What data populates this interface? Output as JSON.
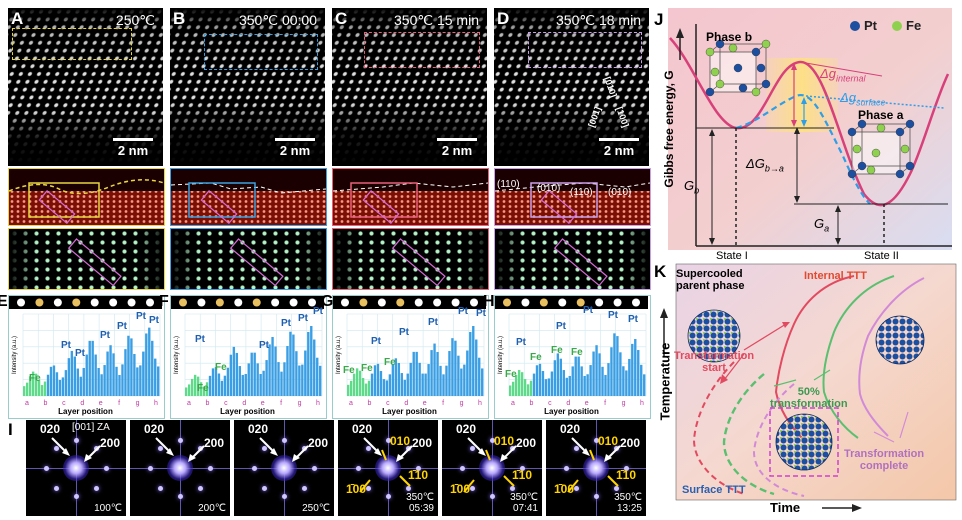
{
  "figure": {
    "panels": {
      "A": {
        "letter": "A",
        "time": "250℃",
        "box_color": "#e8d640",
        "frame_color": "#e8d640"
      },
      "B": {
        "letter": "B",
        "time": "350℃ 00:00",
        "box_color": "#3aa0e0",
        "frame_color": "#3aa0e0"
      },
      "C": {
        "letter": "C",
        "time": "350℃ 15 min",
        "box_color": "#e8607a",
        "frame_color": "#e8607a"
      },
      "D": {
        "letter": "D",
        "time": "350℃ 18 min",
        "box_color": "#c9a0e8",
        "frame_color": "#c9a0e8"
      }
    },
    "scale_bar": "2 nm",
    "d_directions": [
      "[001]",
      "[010]",
      "[100]"
    ],
    "d_planes": [
      "(110)",
      "(010)",
      "(110)",
      "(010)"
    ],
    "profiles": [
      {
        "letter": "E",
        "labels": [
          [
            "Fe",
            20,
            130
          ],
          [
            "Pt",
            52,
            97
          ],
          [
            "Pt",
            66,
            105
          ],
          [
            "Pt",
            91,
            87
          ],
          [
            "Pt",
            108,
            78
          ],
          [
            "Pt",
            127,
            68
          ],
          [
            "Pt",
            140,
            72
          ],
          [
            "Pt",
            155,
            66
          ]
        ]
      },
      {
        "letter": "F",
        "labels": [
          [
            "Fe",
            26,
            140
          ],
          [
            "Fe",
            44,
            119
          ],
          [
            "Pt",
            24,
            91
          ],
          [
            "Pt",
            88,
            97
          ],
          [
            "Pt",
            110,
            75
          ],
          [
            "Pt",
            127,
            70
          ],
          [
            "Pt",
            142,
            63
          ]
        ]
      },
      {
        "letter": "G",
        "labels": [
          [
            "Fe",
            10,
            122
          ],
          [
            "Fe",
            28,
            120
          ],
          [
            "Fe",
            51,
            114
          ],
          [
            "Pt",
            38,
            93
          ],
          [
            "Pt",
            66,
            84
          ],
          [
            "Pt",
            95,
            74
          ],
          [
            "Pt",
            125,
            63
          ],
          [
            "Pt",
            143,
            65
          ]
        ]
      },
      {
        "letter": "H",
        "labels": [
          [
            "Fe",
            10,
            126
          ],
          [
            "Fe",
            35,
            109
          ],
          [
            "Fe",
            56,
            102
          ],
          [
            "Fe",
            76,
            104
          ],
          [
            "Pt",
            21,
            94
          ],
          [
            "Pt",
            61,
            78
          ],
          [
            "Pt",
            88,
            62
          ],
          [
            "Pt",
            113,
            67
          ],
          [
            "Pt",
            133,
            71
          ]
        ]
      }
    ],
    "profile_ylabel": "Intensity (a.u.)",
    "profile_xlabel": "Layer position",
    "profile_ticks": [
      "a",
      "b",
      "c",
      "d",
      "e",
      "f",
      "g",
      "h"
    ],
    "fft_letter": "I",
    "fft_za": "[001] ZA",
    "fft_panels": [
      {
        "temp": "100℃",
        "time": "",
        "sup": false
      },
      {
        "temp": "200℃",
        "time": "",
        "sup": false
      },
      {
        "temp": "250℃",
        "time": "",
        "sup": false
      },
      {
        "temp": "350℃",
        "time": "05:39",
        "sup": true
      },
      {
        "temp": "350℃",
        "time": "07:41",
        "sup": true
      },
      {
        "temp": "350℃",
        "time": "13:25",
        "sup": true
      }
    ],
    "fft_labels": {
      "l020": "020",
      "l200": "200",
      "l010": "010",
      "l1m10": "1̄10",
      "lm100": "1̄00"
    },
    "J": {
      "letter": "J",
      "legend_pt": "Pt",
      "legend_fe": "Fe",
      "phase_b": "Phase b",
      "phase_a": "Phase a",
      "dg_internal": "Δg",
      "dg_internal_sub": "internal",
      "dg_surface": "Δg",
      "dg_surface_sub": "surface",
      "dG": "ΔG",
      "dG_sub": "b→a",
      "Gb": "G",
      "Gb_sub": "b",
      "Ga": "G",
      "Ga_sub": "a",
      "ylabel": "Gibbs free energy, G",
      "state1": "State I",
      "state2": "State II",
      "colors": {
        "pt": "#1d4fa0",
        "fe": "#8fd14f",
        "curve": "#d8407a",
        "surface": "#2f9ee8"
      }
    },
    "K": {
      "letter": "K",
      "supercooled": "Supercooled",
      "parent": "parent phase",
      "internal_ttt": "Internal TTT",
      "surface_ttt": "Surface TTT",
      "start1": "Transformation",
      "start2": "start",
      "fifty1": "50%",
      "fifty2": "transformation",
      "complete1": "Transformation",
      "complete2": "complete",
      "ylabel": "Temperature",
      "xlabel": "Time"
    }
  }
}
